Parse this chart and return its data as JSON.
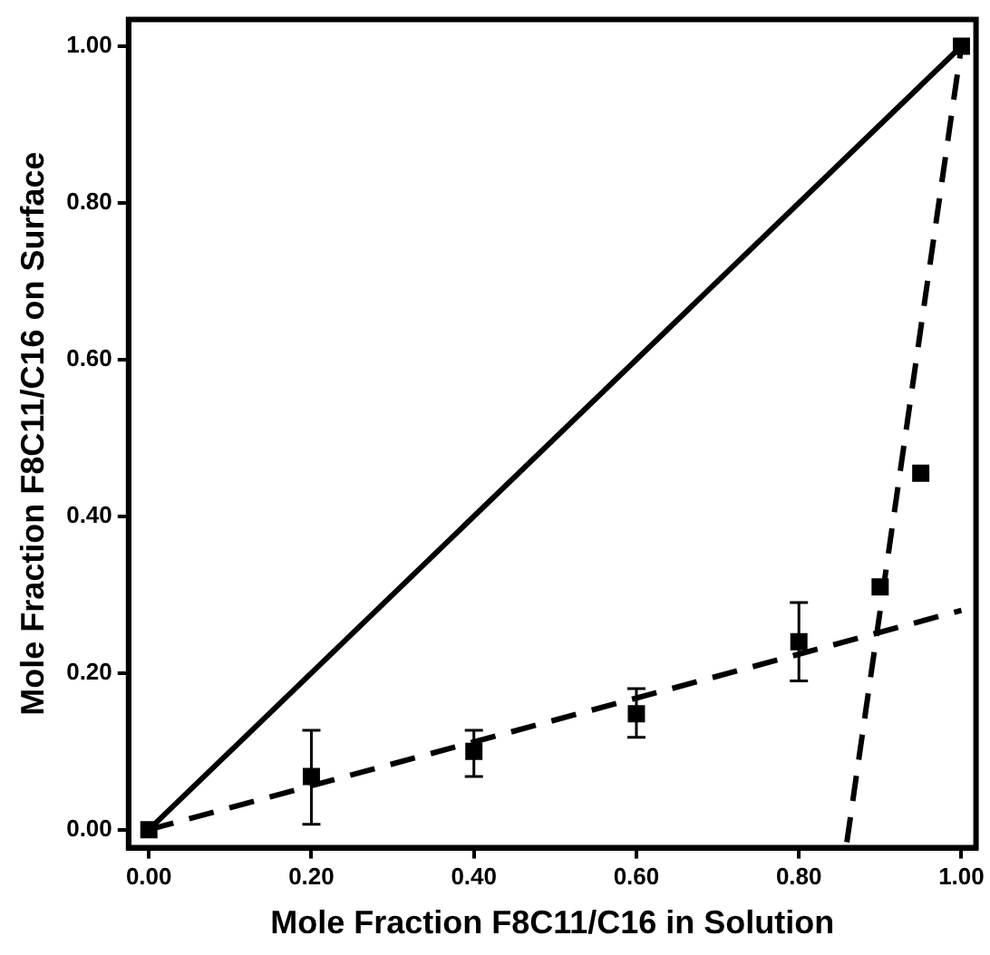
{
  "chart_data": {
    "type": "scatter",
    "xlabel": "Mole Fraction F8C11/C16 in Solution",
    "ylabel": "Mole Fraction F8C11/C16 on Surface",
    "xlim": [
      -0.025,
      1.018
    ],
    "ylim": [
      -0.023,
      1.034
    ],
    "xticks": [
      {
        "value": 0,
        "label": "0.00"
      },
      {
        "value": 0.2,
        "label": "0.20"
      },
      {
        "value": 0.4,
        "label": "0.40"
      },
      {
        "value": 0.6,
        "label": "0.60"
      },
      {
        "value": 0.8,
        "label": "0.80"
      },
      {
        "value": 1,
        "label": "1.00"
      }
    ],
    "yticks": [
      {
        "value": 0,
        "label": "0.00"
      },
      {
        "value": 0.2,
        "label": "0.20"
      },
      {
        "value": 0.4,
        "label": "0.40"
      },
      {
        "value": 0.6,
        "label": "0.60"
      },
      {
        "value": 0.8,
        "label": "0.80"
      },
      {
        "value": 1,
        "label": "1.00"
      }
    ],
    "grid": false,
    "legend": false,
    "series": [
      {
        "color": "#000000",
        "marker": "square",
        "x": [
          0,
          0.2,
          0.4,
          0.6,
          0.8,
          0.9,
          0.95,
          1.0
        ],
        "values": [
          0,
          0.068,
          0.1,
          0.148,
          0.24,
          0.31,
          0.455,
          1.0
        ],
        "errors": [
          null,
          [
            0.007,
            0.127
          ],
          [
            0.068,
            0.127
          ],
          [
            0.118,
            0.18
          ],
          [
            0.19,
            0.29
          ],
          null,
          null,
          null
        ]
      },
      {
        "type": "line",
        "color": "#000000",
        "line_style": "solid",
        "marker": "none",
        "x": [
          0,
          1
        ],
        "values": [
          0,
          1
        ]
      },
      {
        "type": "line",
        "color": "#000000",
        "line_style": "dashed",
        "marker": "none",
        "x": [
          0,
          1
        ],
        "values": [
          0,
          0.28
        ]
      },
      {
        "type": "line",
        "color": "#000000",
        "line_style": "dashed",
        "marker": "none",
        "x": [
          0.859,
          1
        ],
        "values": [
          -0.016,
          1
        ]
      }
    ]
  }
}
